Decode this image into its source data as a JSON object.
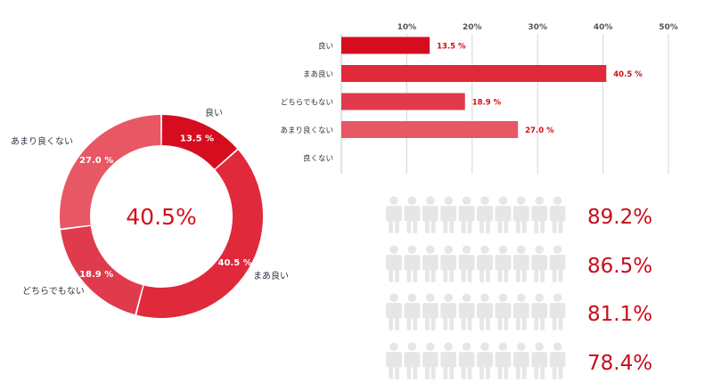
{
  "chart_data": [
    {
      "type": "donut",
      "center_label": "40.5%",
      "slices": [
        {
          "label": "良い",
          "value": 13.5,
          "value_label": "13.5 %",
          "color": "#d60d1f"
        },
        {
          "label": "まあ良い",
          "value": 40.5,
          "value_label": "40.5 %",
          "color": "#e0293a"
        },
        {
          "label": "どちらでもない",
          "value": 18.9,
          "value_label": "18.9 %",
          "color": "#e03b4c"
        },
        {
          "label": "あまり良くない",
          "value": 27.0,
          "value_label": "27.0 %",
          "color": "#e85764"
        }
      ]
    },
    {
      "type": "bar",
      "orientation": "horizontal",
      "categories": [
        "良い",
        "まあ良い",
        "どちらでもない",
        "あまり良くない",
        "良くない"
      ],
      "values": [
        13.5,
        40.5,
        18.9,
        27.0,
        0
      ],
      "value_labels": [
        "13.5 %",
        "40.5 %",
        "18.9 %",
        "27.0 %",
        ""
      ],
      "colors": [
        "#d60d1f",
        "#e0293a",
        "#e03b4c",
        "#e85764",
        "#e85764"
      ],
      "xlim": [
        0,
        50
      ],
      "ticks": [
        10,
        20,
        30,
        40,
        50
      ],
      "tick_labels": [
        "10%",
        "20%",
        "30%",
        "40%",
        "50%"
      ],
      "grid": true
    },
    {
      "type": "pictograph",
      "icons_per_row": 10,
      "filled_color": "#d21018",
      "empty_color": "#e6e6e6",
      "rows": [
        {
          "value": 89.2,
          "label": "89.2%"
        },
        {
          "value": 86.5,
          "label": "86.5%"
        },
        {
          "value": 81.1,
          "label": "81.1%"
        },
        {
          "value": 78.4,
          "label": "78.4%"
        }
      ]
    }
  ]
}
